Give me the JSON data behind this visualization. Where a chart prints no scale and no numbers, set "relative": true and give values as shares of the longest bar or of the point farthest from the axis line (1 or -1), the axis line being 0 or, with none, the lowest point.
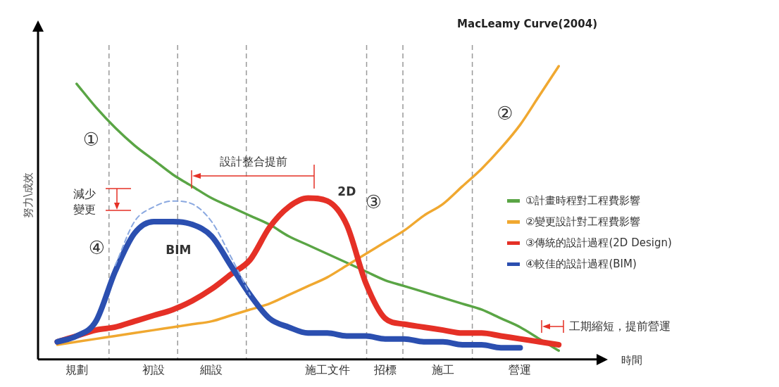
{
  "chart_data": {
    "type": "line",
    "title": "MacLeamy Curve(2004)",
    "xlabel": "時間",
    "ylabel": "努力\\成效",
    "relative": true,
    "legend": "right",
    "grid": "x",
    "marker": "none",
    "categories": [
      null,
      null,
      "規劃",
      null,
      null,
      null,
      "初設",
      null,
      null,
      "細設",
      null,
      null,
      null,
      null,
      null,
      "施工文件",
      null,
      null,
      "招標",
      null,
      null,
      "施工",
      null,
      null,
      null,
      "營運",
      null,
      null,
      null,
      null
    ],
    "series": [
      {
        "name": "①計畫時程對工程費影響",
        "color": "#5aa545",
        "values": [
          null,
          null,
          0.94,
          0.86,
          0.79,
          0.73,
          0.68,
          0.63,
          0.59,
          0.55,
          0.52,
          0.49,
          0.46,
          0.42,
          0.39,
          0.36,
          0.33,
          0.3,
          0.27,
          0.25,
          0.23,
          0.21,
          0.19,
          0.17,
          0.14,
          0.11,
          0.07,
          0.03,
          null,
          null
        ]
      },
      {
        "name": "②變更設計對工程費影響",
        "color": "#f0a830",
        "values": [
          null,
          0.05,
          0.06,
          0.07,
          0.08,
          0.09,
          0.1,
          0.11,
          0.12,
          0.13,
          0.15,
          0.17,
          0.19,
          0.22,
          0.25,
          0.28,
          0.32,
          0.36,
          0.4,
          0.44,
          0.49,
          0.53,
          0.59,
          0.65,
          0.72,
          0.8,
          0.9,
          1,
          null,
          null
        ]
      },
      {
        "name": "③傳統的設計過程(2D Design)",
        "color": "#e53026",
        "values": [
          null,
          0.06,
          0.08,
          0.1,
          0.11,
          0.13,
          0.15,
          0.17,
          0.2,
          0.24,
          0.29,
          0.34,
          0.45,
          0.52,
          0.55,
          0.54,
          0.46,
          0.26,
          0.14,
          0.12,
          0.11,
          0.1,
          0.09,
          0.09,
          0.08,
          0.07,
          0.06,
          0.05,
          null,
          null
        ]
      },
      {
        "name": "④較佳的設計過程(BIM)",
        "color": "#2b4fb0",
        "values": [
          null,
          0.06,
          0.08,
          0.13,
          0.3,
          0.43,
          0.47,
          0.47,
          0.46,
          0.42,
          0.32,
          0.22,
          0.14,
          0.11,
          0.09,
          0.09,
          0.08,
          0.08,
          0.07,
          0.07,
          0.06,
          0.06,
          0.05,
          0.05,
          0.04,
          0.04,
          null,
          null,
          null,
          null
        ]
      },
      {
        "color": "#8aa8e0",
        "line_style": "dashed",
        "values": [
          null,
          null,
          null,
          null,
          0.32,
          0.47,
          0.52,
          0.54,
          0.53,
          0.47,
          0.35,
          0.22,
          null,
          null,
          null,
          null,
          null,
          null,
          null,
          null,
          null,
          null,
          null,
          null,
          null,
          null,
          null,
          null,
          null,
          null
        ]
      }
    ],
    "annotations": [
      "設計整合提前",
      "減少變更",
      "工期縮短，提前營運",
      "2D",
      "BIM",
      "①",
      "②",
      "③",
      "④"
    ]
  }
}
